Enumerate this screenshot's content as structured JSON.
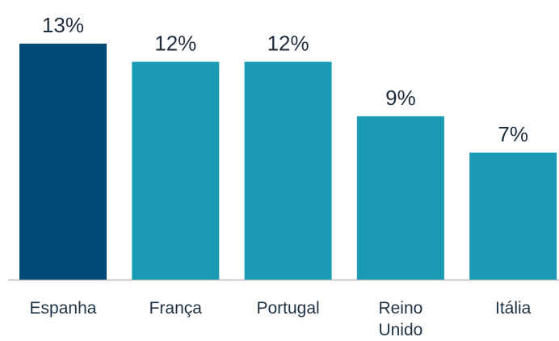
{
  "chart_data": {
    "type": "bar",
    "categories": [
      "Espanha",
      "França",
      "Portugal",
      "Reino Unido",
      "Itália"
    ],
    "values": [
      13,
      12,
      12,
      9,
      7
    ],
    "value_labels": [
      "13%",
      "12%",
      "12%",
      "9%",
      "7%"
    ],
    "colors": [
      "#004876",
      "#1a9bb3",
      "#1a9bb3",
      "#1a9bb3",
      "#1a9bb3"
    ]
  }
}
